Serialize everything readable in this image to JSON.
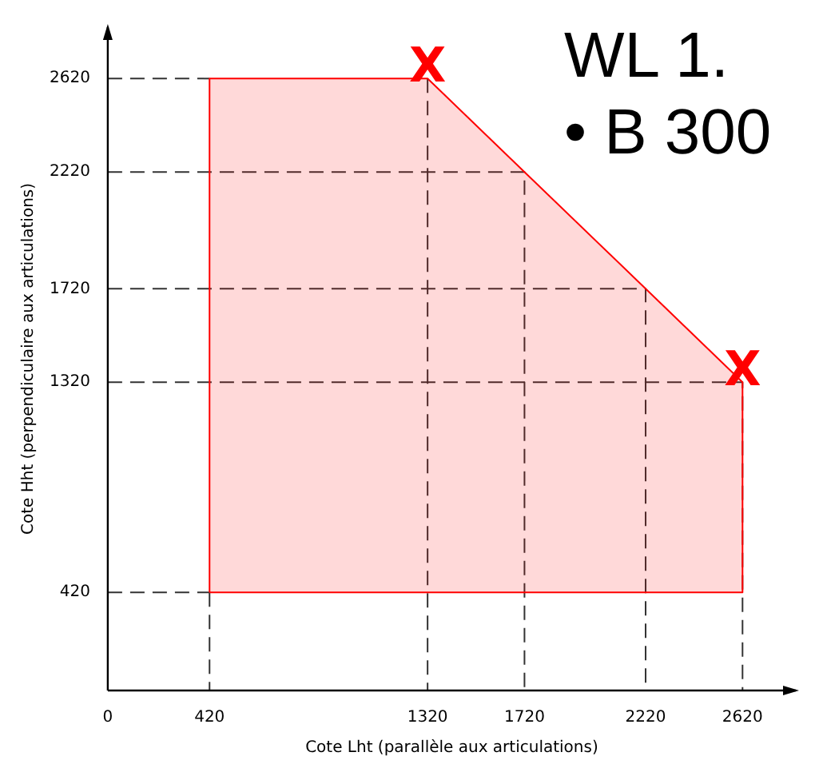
{
  "chart_data": {
    "type": "area",
    "xlabel": "Cote Lht (parallèle aux articulations)",
    "ylabel": "Cote Hht (perpendiculaire aux articulations)",
    "series": [
      {
        "color": "#ff0000",
        "x": [
          420,
          420,
          1320,
          1720,
          2220,
          2620,
          2620,
          420
        ],
        "values": [
          420,
          2620,
          2620,
          2220,
          1720,
          1320,
          420,
          420
        ]
      },
      {
        "type": "line",
        "color": "#333333",
        "line_style": "dashed",
        "x": [
          0,
          420
        ],
        "values": [
          2620,
          2620
        ]
      },
      {
        "type": "line",
        "color": "#333333",
        "line_style": "dashed",
        "x": [
          420,
          420
        ],
        "values": [
          420,
          0
        ]
      },
      {
        "type": "line",
        "color": "#333333",
        "line_style": "dashed",
        "x": [
          1320,
          1320
        ],
        "values": [
          2620,
          0
        ]
      },
      {
        "type": "line",
        "color": "#333333",
        "line_style": "dashed",
        "x": [
          0,
          1720,
          1720
        ],
        "values": [
          2220,
          2220,
          0
        ]
      },
      {
        "type": "line",
        "color": "#333333",
        "line_style": "dashed",
        "x": [
          0,
          2220,
          2220
        ],
        "values": [
          1720,
          1720,
          0
        ]
      },
      {
        "type": "line",
        "color": "#333333",
        "line_style": "dashed",
        "x": [
          0,
          2620,
          2620
        ],
        "values": [
          1320,
          1320,
          0
        ]
      },
      {
        "type": "line",
        "color": "#333333",
        "line_style": "dashed",
        "x": [
          0,
          420
        ],
        "values": [
          420,
          420
        ]
      }
    ],
    "xlim": [
      0,
      2840
    ],
    "ylim": [
      0,
      2840
    ],
    "xticks": [
      0,
      420,
      1320,
      1720,
      2220,
      2620
    ],
    "yticks": [
      420,
      1320,
      1720,
      2220,
      2620
    ],
    "legend": false,
    "marker": "none",
    "line_style": "solid",
    "annotations": [
      {
        "text": "X",
        "x": 1320,
        "y": 2620
      },
      {
        "text": "X",
        "x": 2620,
        "y": 1320
      },
      "WL 1.",
      "• B 300"
    ]
  }
}
